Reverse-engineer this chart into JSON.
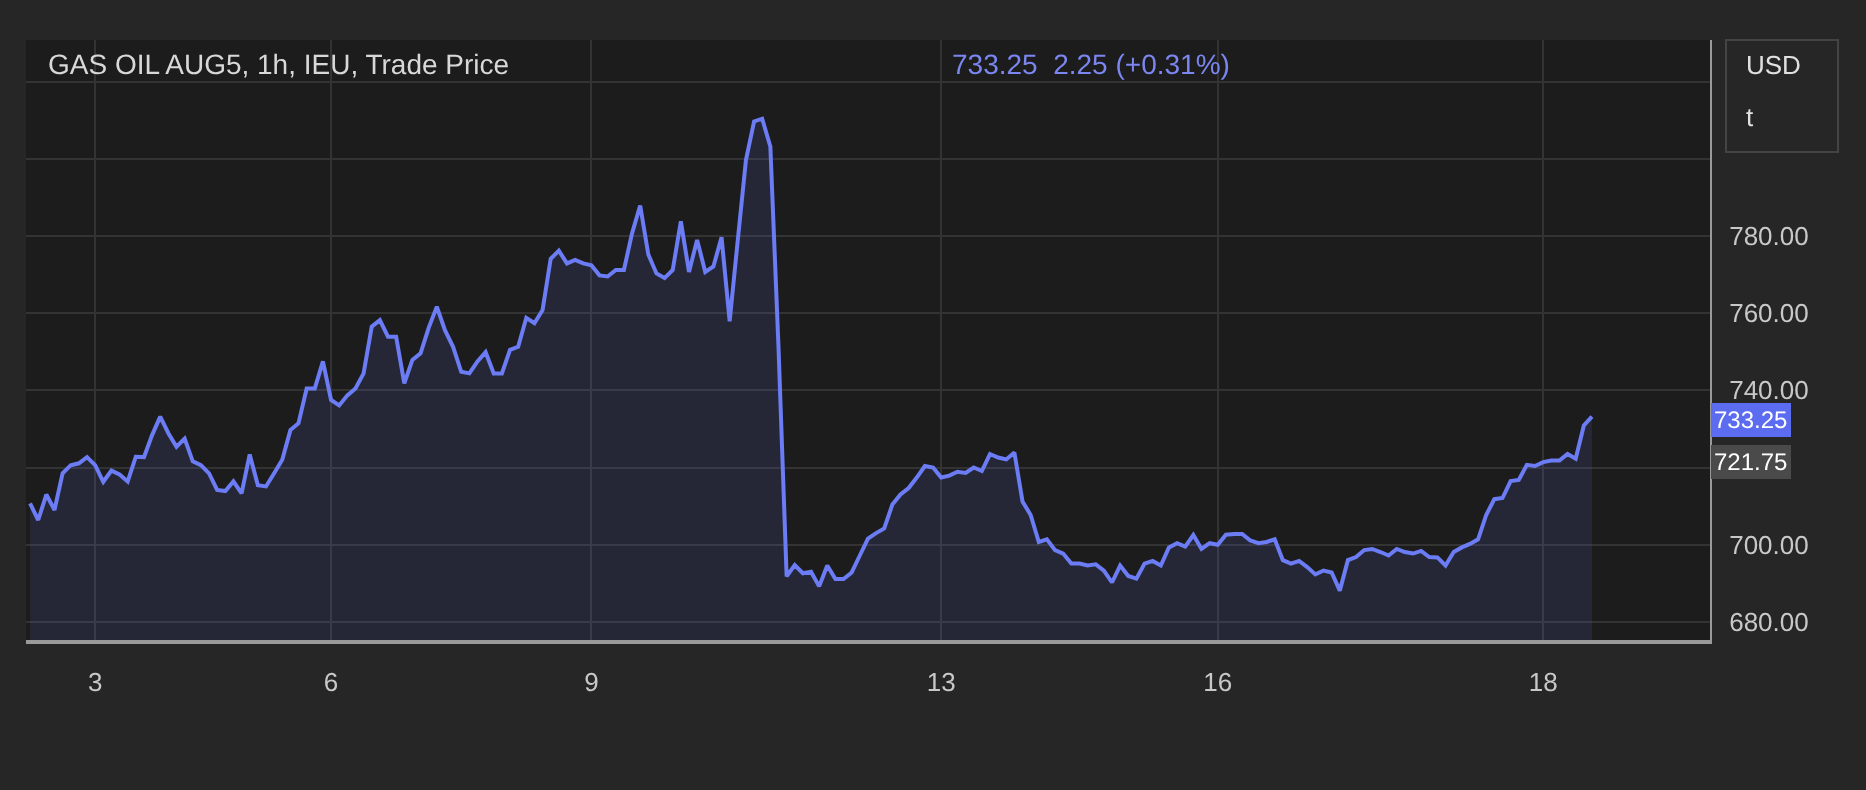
{
  "chart_data": {
    "type": "area",
    "title": "GAS OIL AUG5, 1h, IEU, Trade Price",
    "subtitle": "733.25  2.25 (+0.31%)",
    "annotations": [
      "USD",
      "t",
      "733.25",
      "721.75"
    ],
    "categories": [
      null,
      null,
      null,
      null,
      null,
      null,
      null,
      null,
      "3",
      null,
      null,
      null,
      null,
      null,
      null,
      null,
      null,
      null,
      null,
      null,
      null,
      null,
      null,
      null,
      null,
      null,
      null,
      null,
      null,
      null,
      null,
      null,
      null,
      null,
      null,
      null,
      null,
      "6",
      null,
      null,
      null,
      null,
      null,
      null,
      null,
      null,
      null,
      null,
      null,
      null,
      null,
      null,
      null,
      null,
      null,
      null,
      null,
      null,
      null,
      null,
      null,
      null,
      null,
      null,
      null,
      null,
      null,
      null,
      null,
      "9",
      null,
      null,
      null,
      null,
      null,
      null,
      null,
      null,
      null,
      null,
      null,
      null,
      null,
      null,
      null,
      null,
      null,
      null,
      null,
      null,
      null,
      null,
      null,
      null,
      null,
      null,
      null,
      null,
      null,
      null,
      null,
      null,
      null,
      null,
      null,
      null,
      null,
      null,
      null,
      null,
      null,
      null,
      "13",
      null,
      null,
      null,
      null,
      null,
      null,
      null,
      null,
      null,
      null,
      null,
      null,
      null,
      null,
      null,
      null,
      null,
      null,
      null,
      null,
      null,
      null,
      null,
      null,
      null,
      null,
      null,
      null,
      null,
      null,
      null,
      null,
      null,
      "16",
      null,
      null,
      null,
      null,
      null,
      null,
      null,
      null,
      null,
      null,
      null,
      null,
      null,
      null,
      null,
      null,
      null,
      null,
      null,
      null,
      null,
      null,
      null,
      null,
      null,
      null,
      null,
      null,
      null,
      null,
      null,
      null,
      null,
      null,
      null,
      null,
      null,
      null,
      null,
      "18",
      null,
      null,
      null,
      null,
      null,
      null
    ],
    "ylim": [
      675.3,
      830.8
    ],
    "yticks": [
      {
        "value": 680,
        "label": "680.00"
      },
      {
        "value": 700,
        "label": "700.00"
      },
      {
        "value": 720,
        "label": null
      },
      {
        "value": 740,
        "label": "740.00"
      },
      {
        "value": 760,
        "label": "760.00"
      },
      {
        "value": 780,
        "label": "780.00"
      },
      {
        "value": 800,
        "label": null
      },
      {
        "value": 820,
        "label": null
      }
    ],
    "grid": true,
    "series": [
      {
        "color": "#6b7cf5",
        "values": [
          710.7,
          706.4,
          713.0,
          709.0,
          718.5,
          720.6,
          721.1,
          722.7,
          720.6,
          716.3,
          719.2,
          718.2,
          716.4,
          722.8,
          722.7,
          728.4,
          733.2,
          728.9,
          725.4,
          727.5,
          721.6,
          720.6,
          718.5,
          714.2,
          713.9,
          716.4,
          713.3,
          723.4,
          715.4,
          715.1,
          718.5,
          722.0,
          729.7,
          731.5,
          740.5,
          740.5,
          747.5,
          737.5,
          736.1,
          738.7,
          740.5,
          744.4,
          756.5,
          758.2,
          753.9,
          753.9,
          741.8,
          747.9,
          749.6,
          756.2,
          761.7,
          755.6,
          751.3,
          744.8,
          744.4,
          747.5,
          749.9,
          744.4,
          744.4,
          750.5,
          751.3,
          758.8,
          757.4,
          760.8,
          774.1,
          776.2,
          772.9,
          773.8,
          772.9,
          772.4,
          769.8,
          769.5,
          771.2,
          771.2,
          780.7,
          787.9,
          775.2,
          770.3,
          769.1,
          771.2,
          783.8,
          770.7,
          779.0,
          770.7,
          772.1,
          779.7,
          757.9,
          779.0,
          799.7,
          809.7,
          810.4,
          803.2,
          751.3,
          691.8,
          694.7,
          692.6,
          693.0,
          689.2,
          694.6,
          691.1,
          691.1,
          692.8,
          697.2,
          701.6,
          703.0,
          704.2,
          710.4,
          713.0,
          714.7,
          717.4,
          720.4,
          720.0,
          717.4,
          717.9,
          718.9,
          718.6,
          720.0,
          719.1,
          723.5,
          722.6,
          722.1,
          723.9,
          711.2,
          707.7,
          700.7,
          701.4,
          698.6,
          697.7,
          695.1,
          695.1,
          694.6,
          694.9,
          693.3,
          690.2,
          694.6,
          691.9,
          691.2,
          695.1,
          695.8,
          694.6,
          699.3,
          700.4,
          699.5,
          702.5,
          698.9,
          700.4,
          700.0,
          702.6,
          702.8,
          702.8,
          701.1,
          700.4,
          700.7,
          701.4,
          696.0,
          695.1,
          695.8,
          694.2,
          692.3,
          693.3,
          692.8,
          688.1,
          696.0,
          696.8,
          698.6,
          698.9,
          698.1,
          697.2,
          698.9,
          698.1,
          697.7,
          698.4,
          696.8,
          696.7,
          694.6,
          698.1,
          699.3,
          700.2,
          701.4,
          707.7,
          711.8,
          712.1,
          716.5,
          716.8,
          720.7,
          720.4,
          721.4,
          721.8,
          721.8,
          723.5,
          722.3,
          730.9,
          733.2
        ]
      }
    ]
  }
}
